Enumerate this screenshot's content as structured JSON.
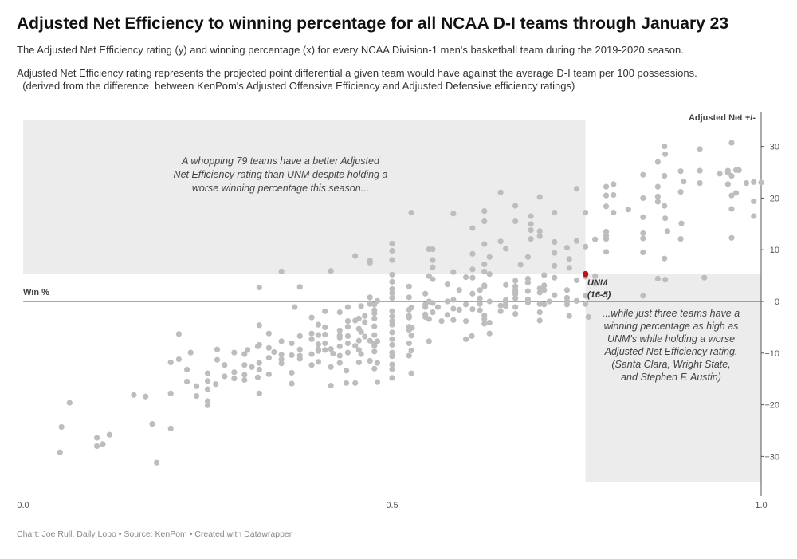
{
  "title": "Adjusted Net Efficiency to winning percentage for all NCAA D-I teams through January 23",
  "subtitle": "The Adjusted Net Efficiency rating (y) and winning percentage (x) for every NCAA Division-1 men's basketball team during the 2019-2020 season.",
  "description_line1": "Adjusted Net Efficiency rating represents the projected point differential a given team would have against the average D-I team per 100 possessions.",
  "description_line2": "  (derived from the difference  between KenPom's Adjusted Offensive Efficiency and Adjusted Defensive efficiency ratings)",
  "footer": "Chart: Joe Rull, Daily Lobo • Source: KenPom • Created with Datawrapper",
  "colors": {
    "dots": "#bdbdbd",
    "highlight": "#b9151b",
    "shade": "#ececec",
    "axis": "#555555"
  },
  "chart_data": {
    "type": "scatter",
    "xlabel": "Win %",
    "ylabel": "Adjusted Net +/-",
    "xlim": [
      0,
      1
    ],
    "ylim": [
      -35,
      35
    ],
    "x_ticks": [
      "0.0",
      "0.5",
      "1.0"
    ],
    "y_ticks": [
      30,
      20,
      10,
      0,
      -10,
      -20,
      -30
    ],
    "grid": false,
    "highlight": {
      "name": "UNM",
      "record": "(16-5)",
      "x": 0.762,
      "y": 5.3
    },
    "annotations": [
      [
        "A whopping 79 teams have a better Adjusted",
        "Net Efficiency rating than UNM despite holding a",
        "worse winning percentage this season..."
      ],
      [
        "...while just three teams have a",
        "winning percentage as high as",
        "UNM's while holding a worse",
        "Adjusted Net Efficiency rating.",
        "(Santa Clara, Wright State,",
        "and Stephen F. Austin)"
      ]
    ],
    "points": [
      [
        0.05,
        -29.2
      ],
      [
        0.052,
        -24.3
      ],
      [
        0.063,
        -19.6
      ],
      [
        0.1,
        -26.4
      ],
      [
        0.1,
        -28
      ],
      [
        0.108,
        -27.6
      ],
      [
        0.117,
        -25.8
      ],
      [
        0.15,
        -18.1
      ],
      [
        0.166,
        -18.4
      ],
      [
        0.175,
        -23.7
      ],
      [
        0.181,
        -31.2
      ],
      [
        0.2,
        -24.6
      ],
      [
        0.2,
        -17.8
      ],
      [
        0.2,
        -11.8
      ],
      [
        0.211,
        -6.3
      ],
      [
        0.211,
        -11.2
      ],
      [
        0.222,
        -13.2
      ],
      [
        0.222,
        -15.5
      ],
      [
        0.227,
        -9.9
      ],
      [
        0.235,
        -16.4
      ],
      [
        0.235,
        -18.3
      ],
      [
        0.25,
        -13.9
      ],
      [
        0.25,
        -17
      ],
      [
        0.25,
        -20.1
      ],
      [
        0.25,
        -19.3
      ],
      [
        0.25,
        -15.4
      ],
      [
        0.261,
        -16
      ],
      [
        0.263,
        -9.3
      ],
      [
        0.263,
        -11.3
      ],
      [
        0.273,
        -14.5
      ],
      [
        0.273,
        -12.3
      ],
      [
        0.286,
        -13.7
      ],
      [
        0.286,
        -9.9
      ],
      [
        0.286,
        -14.9
      ],
      [
        0.3,
        -10.2
      ],
      [
        0.3,
        -12.3
      ],
      [
        0.3,
        -14.2
      ],
      [
        0.3,
        -15.2
      ],
      [
        0.304,
        -9.4
      ],
      [
        0.31,
        -12.7
      ],
      [
        0.318,
        -8.7
      ],
      [
        0.318,
        -14.7
      ],
      [
        0.32,
        -17.8
      ],
      [
        0.32,
        -8.4
      ],
      [
        0.32,
        -11.9
      ],
      [
        0.32,
        -13.2
      ],
      [
        0.32,
        -4.6
      ],
      [
        0.32,
        2.7
      ],
      [
        0.333,
        -10.9
      ],
      [
        0.333,
        -14.1
      ],
      [
        0.333,
        -6.2
      ],
      [
        0.333,
        -9
      ],
      [
        0.34,
        -9.8
      ],
      [
        0.35,
        -11.2
      ],
      [
        0.35,
        -7.7
      ],
      [
        0.35,
        -10.3
      ],
      [
        0.35,
        -12
      ],
      [
        0.35,
        5.8
      ],
      [
        0.364,
        -10.4
      ],
      [
        0.364,
        -8.1
      ],
      [
        0.364,
        -13.8
      ],
      [
        0.364,
        -15.9
      ],
      [
        0.368,
        -1.1
      ],
      [
        0.375,
        -11.1
      ],
      [
        0.375,
        -9.3
      ],
      [
        0.375,
        -10.5
      ],
      [
        0.375,
        -6.7
      ],
      [
        0.375,
        2.8
      ],
      [
        0.391,
        -12.3
      ],
      [
        0.391,
        -6.2
      ],
      [
        0.391,
        -3.1
      ],
      [
        0.391,
        -7.3
      ],
      [
        0.391,
        -10.2
      ],
      [
        0.4,
        -9.6
      ],
      [
        0.4,
        -8.3
      ],
      [
        0.4,
        -11.7
      ],
      [
        0.4,
        -6.5
      ],
      [
        0.4,
        -9.3
      ],
      [
        0.4,
        -4.5
      ],
      [
        0.409,
        -8.1
      ],
      [
        0.409,
        -1.9
      ],
      [
        0.409,
        -9.4
      ],
      [
        0.409,
        -5
      ],
      [
        0.409,
        -6.4
      ],
      [
        0.417,
        -12.7
      ],
      [
        0.417,
        -16.3
      ],
      [
        0.417,
        5.9
      ],
      [
        0.417,
        -9.2
      ],
      [
        0.42,
        -10.1
      ],
      [
        0.429,
        -11.9
      ],
      [
        0.429,
        -5.6
      ],
      [
        0.429,
        -6.6
      ],
      [
        0.429,
        -2.1
      ],
      [
        0.429,
        -8.7
      ],
      [
        0.429,
        -10.5
      ],
      [
        0.429,
        -7
      ],
      [
        0.438,
        -13.4
      ],
      [
        0.438,
        -15.8
      ],
      [
        0.44,
        -8.1
      ],
      [
        0.44,
        -6.7
      ],
      [
        0.44,
        -3.8
      ],
      [
        0.44,
        -9.9
      ],
      [
        0.44,
        -4.9
      ],
      [
        0.44,
        -1.1
      ],
      [
        0.45,
        8.8
      ],
      [
        0.45,
        -8.6
      ],
      [
        0.45,
        -3.7
      ],
      [
        0.45,
        -15.8
      ],
      [
        0.455,
        -7.6
      ],
      [
        0.455,
        -11.8
      ],
      [
        0.455,
        -3.3
      ],
      [
        0.455,
        -5.3
      ],
      [
        0.455,
        -9.4
      ],
      [
        0.458,
        -5.9
      ],
      [
        0.458,
        -10.2
      ],
      [
        0.458,
        -0.9
      ],
      [
        0.463,
        -6.8
      ],
      [
        0.463,
        -4
      ],
      [
        0.463,
        -2.8
      ],
      [
        0.47,
        -11.5
      ],
      [
        0.47,
        -7.6
      ],
      [
        0.47,
        0.8
      ],
      [
        0.47,
        -0.3
      ],
      [
        0.47,
        -0.5
      ],
      [
        0.47,
        7.5
      ],
      [
        0.47,
        7.9
      ],
      [
        0.476,
        -13
      ],
      [
        0.476,
        -9.7
      ],
      [
        0.476,
        -8.1
      ],
      [
        0.476,
        -3.3
      ],
      [
        0.476,
        -4.8
      ],
      [
        0.476,
        -6.5
      ],
      [
        0.476,
        -1.7
      ],
      [
        0.476,
        -8.6
      ],
      [
        0.476,
        -2.3
      ],
      [
        0.476,
        -0.6
      ],
      [
        0.48,
        -15.6
      ],
      [
        0.48,
        -11.9
      ],
      [
        0.48,
        -7.7
      ],
      [
        0.48,
        0.1
      ],
      [
        0.5,
        -9.9
      ],
      [
        0.5,
        -4.5
      ],
      [
        0.5,
        -6
      ],
      [
        0.5,
        -7.3
      ],
      [
        0.5,
        -10.6
      ],
      [
        0.5,
        0.7
      ],
      [
        0.5,
        1.6
      ],
      [
        0.5,
        2.4
      ],
      [
        0.5,
        5.2
      ],
      [
        0.5,
        8
      ],
      [
        0.5,
        9.8
      ],
      [
        0.5,
        11.2
      ],
      [
        0.5,
        -1.9
      ],
      [
        0.5,
        -3.8
      ],
      [
        0.5,
        -12.2
      ],
      [
        0.5,
        -13.1
      ],
      [
        0.5,
        -14.8
      ],
      [
        0.5,
        -8.4
      ],
      [
        0.5,
        -2.9
      ],
      [
        0.5,
        3.8
      ],
      [
        0.523,
        -8.1
      ],
      [
        0.523,
        -5.5
      ],
      [
        0.523,
        -1.6
      ],
      [
        0.523,
        -3.1
      ],
      [
        0.523,
        -10.5
      ],
      [
        0.523,
        -4.9
      ],
      [
        0.523,
        0.8
      ],
      [
        0.523,
        2.9
      ],
      [
        0.523,
        -2.8
      ],
      [
        0.526,
        17.2
      ],
      [
        0.526,
        -1.2
      ],
      [
        0.526,
        -13.9
      ],
      [
        0.526,
        -6.6
      ],
      [
        0.526,
        -9.5
      ],
      [
        0.527,
        -5.1
      ],
      [
        0.545,
        1.5
      ],
      [
        0.545,
        -0.6
      ],
      [
        0.545,
        -1.1
      ],
      [
        0.545,
        -3
      ],
      [
        0.545,
        -2.5
      ],
      [
        0.55,
        -7.7
      ],
      [
        0.55,
        -3.4
      ],
      [
        0.55,
        4.9
      ],
      [
        0.55,
        0
      ],
      [
        0.55,
        10.1
      ],
      [
        0.555,
        -2.1
      ],
      [
        0.555,
        10.1
      ],
      [
        0.555,
        6.6
      ],
      [
        0.555,
        8
      ],
      [
        0.555,
        4.3
      ],
      [
        0.555,
        -0.3
      ],
      [
        0.562,
        -1.1
      ],
      [
        0.567,
        -3.8
      ],
      [
        0.575,
        -2.6
      ],
      [
        0.575,
        3.3
      ],
      [
        0.575,
        0
      ],
      [
        0.583,
        -3.6
      ],
      [
        0.583,
        -1.4
      ],
      [
        0.583,
        17
      ],
      [
        0.583,
        5.7
      ],
      [
        0.583,
        0.3
      ],
      [
        0.591,
        2.2
      ],
      [
        0.591,
        -1.6
      ],
      [
        0.609,
        1.5
      ],
      [
        0.6,
        -0.6
      ],
      [
        0.6,
        4.7
      ],
      [
        0.6,
        -3.8
      ],
      [
        0.608,
        -6.7
      ],
      [
        0.6,
        -7.3
      ],
      [
        0.609,
        14.2
      ],
      [
        0.609,
        9.2
      ],
      [
        0.609,
        6.2
      ],
      [
        0.609,
        4.6
      ],
      [
        0.609,
        -1.5
      ],
      [
        0.619,
        -0.5
      ],
      [
        0.619,
        -1.7
      ],
      [
        0.619,
        0.6
      ],
      [
        0.619,
        2.2
      ],
      [
        0.625,
        15.5
      ],
      [
        0.625,
        17.5
      ],
      [
        0.625,
        11.1
      ],
      [
        0.625,
        7.2
      ],
      [
        0.625,
        5.8
      ],
      [
        0.625,
        3.1
      ],
      [
        0.625,
        -3.4
      ],
      [
        0.625,
        -4.3
      ],
      [
        0.625,
        -2.7
      ],
      [
        0.625,
        2.9
      ],
      [
        0.632,
        -6.2
      ],
      [
        0.632,
        -4.1
      ],
      [
        0.632,
        5.3
      ],
      [
        0.632,
        0
      ],
      [
        0.632,
        8.6
      ],
      [
        0.647,
        21.1
      ],
      [
        0.647,
        11.6
      ],
      [
        0.647,
        -1.9
      ],
      [
        0.647,
        -0.8
      ],
      [
        0.654,
        3.2
      ],
      [
        0.654,
        -0.6
      ],
      [
        0.654,
        10.2
      ],
      [
        0.654,
        -0.9
      ],
      [
        0.654,
        0.3
      ],
      [
        0.654,
        -0.1
      ],
      [
        0.667,
        18.5
      ],
      [
        0.667,
        15.5
      ],
      [
        0.667,
        1.4
      ],
      [
        0.667,
        -2.4
      ],
      [
        0.667,
        2.3
      ],
      [
        0.667,
        -1.1
      ],
      [
        0.667,
        2.9
      ],
      [
        0.667,
        1.9
      ],
      [
        0.667,
        0.6
      ],
      [
        0.667,
        4
      ],
      [
        0.674,
        7.1
      ],
      [
        0.684,
        4.4
      ],
      [
        0.684,
        0.4
      ],
      [
        0.684,
        2
      ],
      [
        0.684,
        3.6
      ],
      [
        0.684,
        -0.2
      ],
      [
        0.684,
        8.6
      ],
      [
        0.688,
        13.8
      ],
      [
        0.688,
        16.5
      ],
      [
        0.688,
        12.1
      ],
      [
        0.688,
        15
      ],
      [
        0.7,
        -3.7
      ],
      [
        0.7,
        -0.5
      ],
      [
        0.7,
        -2.1
      ],
      [
        0.7,
        1.7
      ],
      [
        0.7,
        2.5
      ],
      [
        0.7,
        13.6
      ],
      [
        0.7,
        20.2
      ],
      [
        0.7,
        12.6
      ],
      [
        0.706,
        3.1
      ],
      [
        0.706,
        2.2
      ],
      [
        0.706,
        -0.6
      ],
      [
        0.706,
        5.1
      ],
      [
        0.713,
        0
      ],
      [
        0.72,
        1.2
      ],
      [
        0.72,
        9.4
      ],
      [
        0.72,
        6.9
      ],
      [
        0.72,
        4.6
      ],
      [
        0.72,
        17.2
      ],
      [
        0.72,
        11.5
      ],
      [
        0.737,
        0
      ],
      [
        0.737,
        10.4
      ],
      [
        0.737,
        2.2
      ],
      [
        0.737,
        0.7
      ],
      [
        0.737,
        -0.6
      ],
      [
        0.74,
        -2.8
      ],
      [
        0.74,
        6.5
      ],
      [
        0.74,
        8.2
      ],
      [
        0.75,
        21.8
      ],
      [
        0.75,
        11.7
      ],
      [
        0.75,
        4.1
      ],
      [
        0.75,
        0.1
      ],
      [
        0.762,
        10.6
      ],
      [
        0.762,
        17.2
      ],
      [
        0.762,
        1.1
      ],
      [
        0.762,
        -0.5
      ],
      [
        0.762,
        4.8
      ],
      [
        0.766,
        -3
      ],
      [
        0.775,
        12
      ],
      [
        0.775,
        4.9
      ],
      [
        0.775,
        3.5
      ],
      [
        0.79,
        22.2
      ],
      [
        0.79,
        13.5
      ],
      [
        0.79,
        18.4
      ],
      [
        0.79,
        12.7
      ],
      [
        0.79,
        12.1
      ],
      [
        0.79,
        9.6
      ],
      [
        0.79,
        20.5
      ],
      [
        0.8,
        17.2
      ],
      [
        0.8,
        20.6
      ],
      [
        0.8,
        22.7
      ],
      [
        0.82,
        17.8
      ],
      [
        0.84,
        12.2
      ],
      [
        0.84,
        20
      ],
      [
        0.84,
        24.5
      ],
      [
        0.84,
        13.2
      ],
      [
        0.84,
        16.3
      ],
      [
        0.84,
        9.5
      ],
      [
        0.84,
        1.1
      ],
      [
        0.86,
        22.2
      ],
      [
        0.86,
        27
      ],
      [
        0.86,
        4.4
      ],
      [
        0.86,
        19.3
      ],
      [
        0.86,
        20.3
      ],
      [
        0.869,
        30
      ],
      [
        0.869,
        24.3
      ],
      [
        0.869,
        18.5
      ],
      [
        0.869,
        8.3
      ],
      [
        0.87,
        28.5
      ],
      [
        0.87,
        4.2
      ],
      [
        0.87,
        16.1
      ],
      [
        0.873,
        13.6
      ],
      [
        0.891,
        12.1
      ],
      [
        0.891,
        25.2
      ],
      [
        0.891,
        21.2
      ],
      [
        0.892,
        15.1
      ],
      [
        0.895,
        23.2
      ],
      [
        0.917,
        29.5
      ],
      [
        0.917,
        25.3
      ],
      [
        0.917,
        22.9
      ],
      [
        0.923,
        4.6
      ],
      [
        0.944,
        24.7
      ],
      [
        0.955,
        25.3
      ],
      [
        0.955,
        24.9
      ],
      [
        0.955,
        22.7
      ],
      [
        0.96,
        30.7
      ],
      [
        0.96,
        24.3
      ],
      [
        0.96,
        17.9
      ],
      [
        0.96,
        20.5
      ],
      [
        0.96,
        12.3
      ],
      [
        0.966,
        25.4
      ],
      [
        0.966,
        21
      ],
      [
        0.97,
        25.4
      ],
      [
        0.98,
        22.9
      ],
      [
        0.99,
        23.1
      ],
      [
        0.99,
        19.4
      ],
      [
        0.99,
        16.5
      ],
      [
        1,
        23
      ]
    ]
  }
}
